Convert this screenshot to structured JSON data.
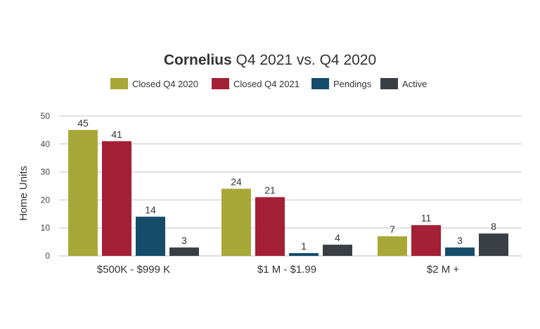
{
  "chart_data": {
    "type": "bar",
    "title_bold": "Cornelius",
    "title_rest": " Q4 2021 vs. Q4 2020",
    "xlabel": "",
    "ylabel": "Home Units",
    "ylim": [
      0,
      50
    ],
    "yticks": [
      0,
      10,
      20,
      30,
      40,
      50
    ],
    "grid": true,
    "legend_position": "top",
    "categories": [
      "$500K - $999 K",
      "$1 M - $1.99",
      "$2 M +"
    ],
    "series": [
      {
        "name": "Closed Q4 2020",
        "color": "#a8a838",
        "values": [
          45,
          24,
          7
        ]
      },
      {
        "name": "Closed Q4 2021",
        "color": "#a32035",
        "values": [
          41,
          21,
          11
        ]
      },
      {
        "name": "Pendings",
        "color": "#154c69",
        "values": [
          14,
          1,
          3
        ]
      },
      {
        "name": "Active",
        "color": "#3a3f45",
        "values": [
          3,
          4,
          8
        ]
      }
    ]
  }
}
